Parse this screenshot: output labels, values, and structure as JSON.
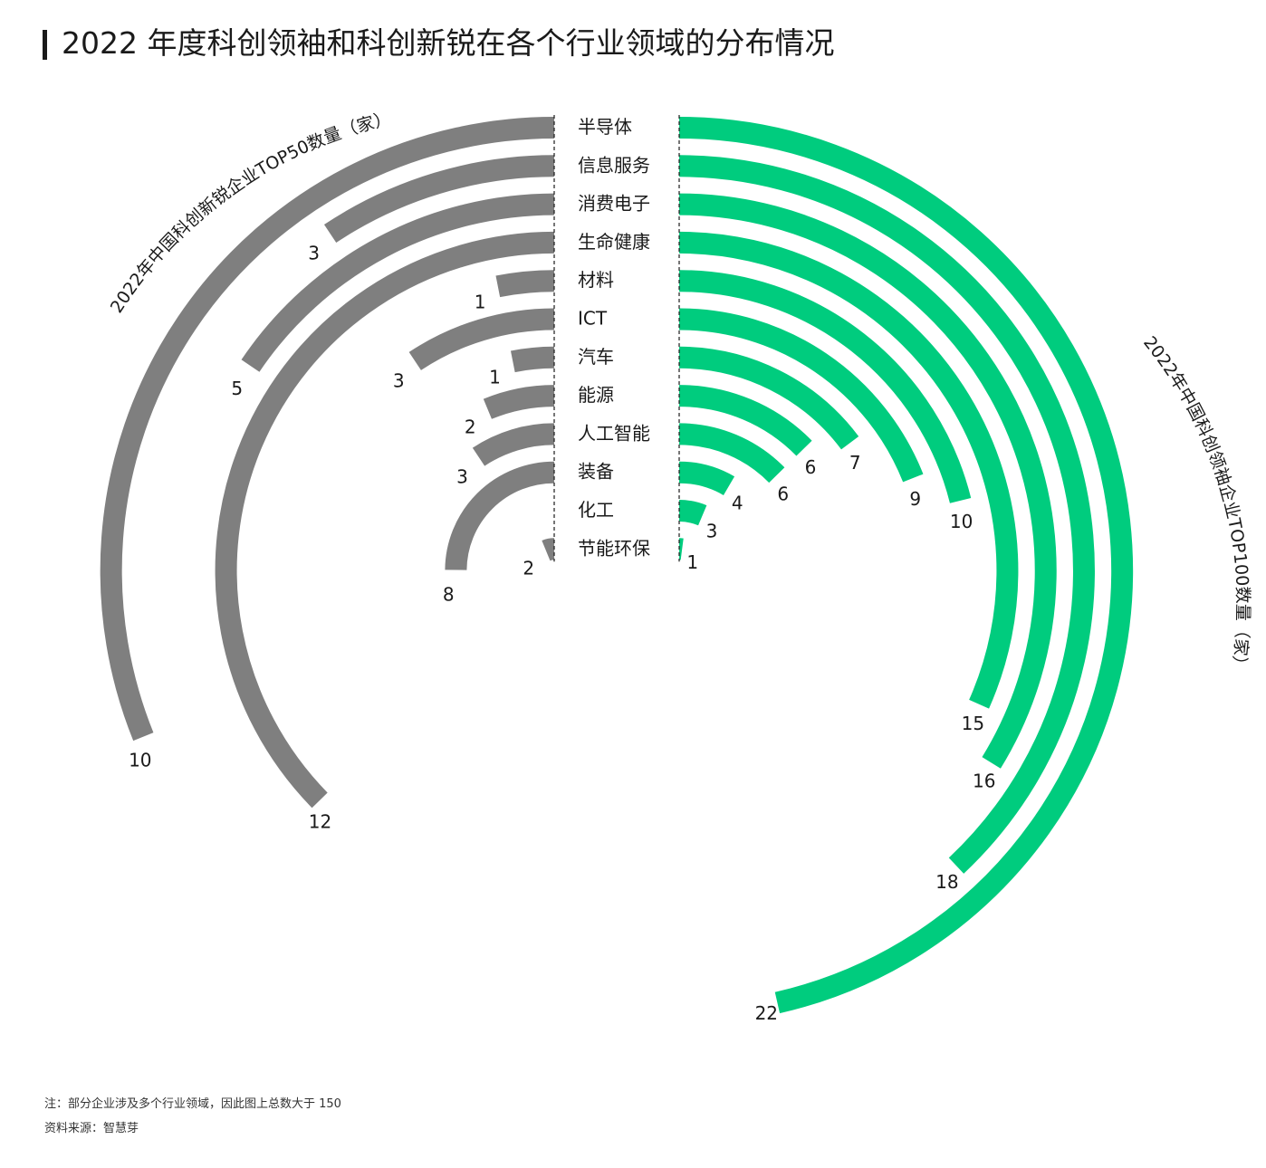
{
  "title": "2022 年度科创领袖和科创新锐在各个行业领域的分布情况",
  "footer": {
    "note": "注：部分企业涉及多个行业领域，因此图上总数大于 150",
    "source": "资料来源：智慧芽"
  },
  "colors": {
    "left": "#7f7f7f",
    "right": "#00cc7e",
    "text": "#1a1a1a"
  },
  "chart_data": {
    "type": "radial-bar",
    "categories": [
      "半导体",
      "信息服务",
      "消费电子",
      "生命健康",
      "材料",
      "ICT",
      "汽车",
      "能源",
      "人工智能",
      "装备",
      "化工",
      "节能环保"
    ],
    "series": [
      {
        "name": "2022年中国科创新锐企业TOP50数量（家）",
        "side": "left",
        "values": [
          10,
          3,
          5,
          12,
          1,
          3,
          1,
          2,
          3,
          8,
          null,
          2
        ]
      },
      {
        "name": "2022年中国科创领袖企业TOP100数量（家）",
        "side": "right",
        "values": [
          22,
          18,
          16,
          15,
          10,
          9,
          7,
          6,
          6,
          4,
          3,
          1
        ]
      }
    ]
  }
}
